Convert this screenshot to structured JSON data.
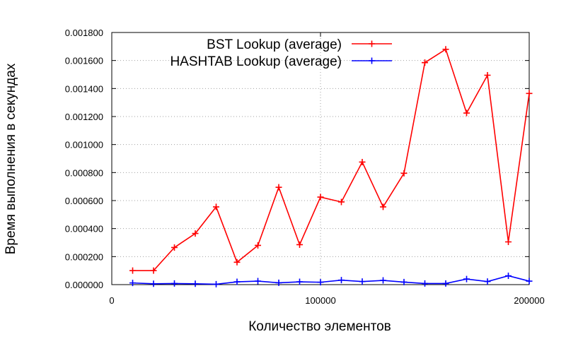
{
  "chart_data": {
    "type": "line",
    "title": "",
    "xlabel": "Количество элементов",
    "ylabel": "Время выполнения в секундах",
    "xlim": [
      0,
      200000
    ],
    "ylim": [
      0,
      0.0018
    ],
    "x_ticks": [
      "0",
      "100000",
      "200000"
    ],
    "x_tick_values": [
      0,
      100000,
      200000
    ],
    "y_ticks": [
      "0.000000",
      "0.000200",
      "0.000400",
      "0.000600",
      "0.000800",
      "0.001000",
      "0.001200",
      "0.001400",
      "0.001600",
      "0.001800"
    ],
    "y_tick_values": [
      0,
      0.0002,
      0.0004,
      0.0006,
      0.0008,
      0.001,
      0.0012,
      0.0014,
      0.0016,
      0.0018
    ],
    "grid": true,
    "legend_position": "top-right",
    "x": [
      10000,
      20000,
      30000,
      40000,
      50000,
      60000,
      70000,
      80000,
      90000,
      100000,
      110000,
      120000,
      130000,
      140000,
      150000,
      160000,
      170000,
      180000,
      190000,
      200000
    ],
    "series": [
      {
        "name": "BST Lookup (average)",
        "color": "#ff0000",
        "values": [
          0.0001,
          0.0001,
          0.000265,
          0.000365,
          0.000555,
          0.00016,
          0.00028,
          0.000695,
          0.000285,
          0.000625,
          0.00059,
          0.000875,
          0.000555,
          0.000795,
          0.001585,
          0.00168,
          0.001225,
          0.001495,
          0.000305,
          0.001365
        ]
      },
      {
        "name": "HASHTAB Lookup (average)",
        "color": "#0000ff",
        "values": [
          1.2e-05,
          6e-06,
          8e-06,
          6e-06,
          3e-06,
          2e-05,
          2.5e-05,
          1.3e-05,
          2e-05,
          1.7e-05,
          3.2e-05,
          2.2e-05,
          3e-05,
          1.8e-05,
          8e-06,
          8e-06,
          4e-05,
          2.2e-05,
          6.3e-05,
          2.5e-05
        ]
      }
    ]
  }
}
